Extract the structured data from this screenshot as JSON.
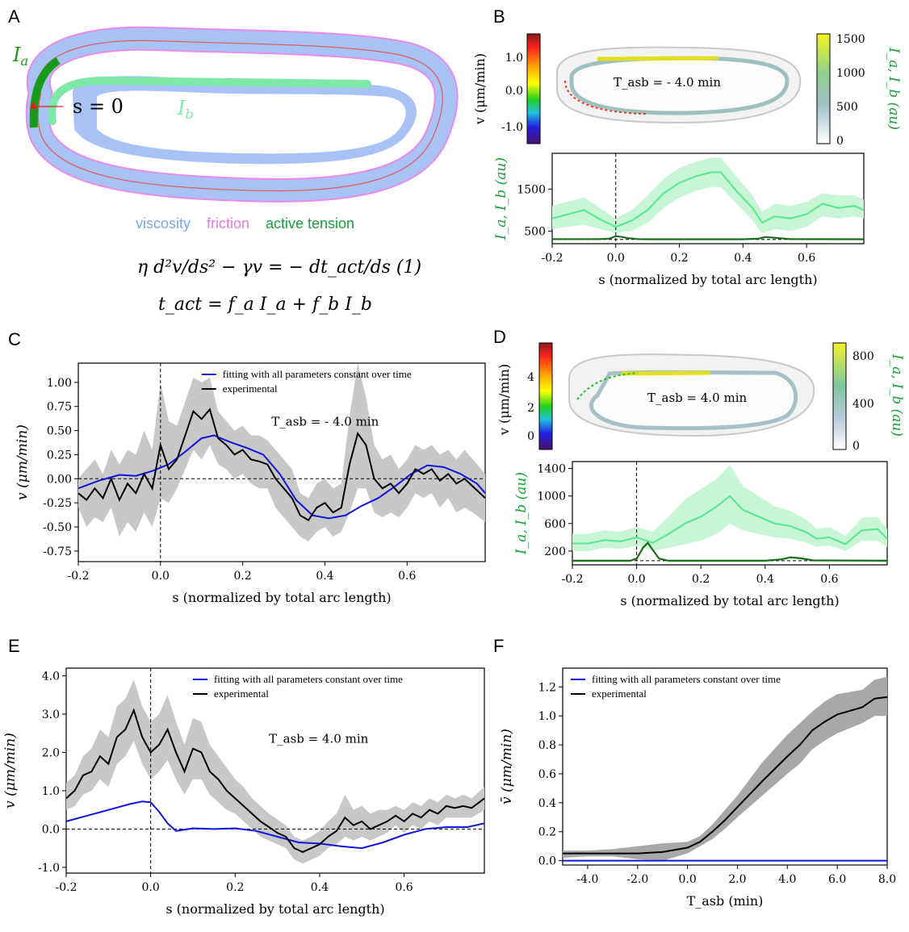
{
  "panel_labels": [
    "A",
    "B",
    "C",
    "D",
    "E",
    "F"
  ],
  "panelA": {
    "Ia_label": "I_a",
    "Ib_label": "I_b",
    "s0_label": "s = 0",
    "legend_viscosity": "viscosity",
    "legend_friction": "friction",
    "legend_tension": "active tension",
    "eq1": "η d²v/ds² − γv = − dt_act/ds   (1)",
    "eq2": "t_act = f_a I_a + f_b I_b",
    "colors": {
      "viscosity": "#a9c2f5",
      "friction": "#e88ae8",
      "tension": "#1aa03a",
      "Ia": "#1a9a1a",
      "Ib": "#7de8a8",
      "centerline": "#e05a5a"
    }
  },
  "panelB": {
    "v_label": "v (μm/min)",
    "v_ticks": [
      "1.0",
      "0.0",
      "-1.0"
    ],
    "I_label": "I_a, I_b (au)",
    "I_ticks": [
      "1500",
      "1000",
      "500",
      "0"
    ],
    "time_label": "T_asb = - 4.0 min"
  },
  "panelD": {
    "v_label": "v (μm/min)",
    "v_ticks": [
      "4",
      "2",
      "0"
    ],
    "I_label": "I_a, I_b (au)",
    "I_ticks": [
      "800",
      "400",
      "0"
    ],
    "time_label": "T_asb = 4.0 min"
  },
  "chart_data": [
    {
      "id": "B",
      "type": "line",
      "xlabel": "s (normalized by total arc length)",
      "ylabel": "I_a, I_b (au)",
      "xlim": [
        -0.2,
        0.78
      ],
      "ylim": [
        200,
        2350
      ],
      "xticks": [
        "-0.2",
        "0.0",
        "0.2",
        "0.4",
        "0.6"
      ],
      "yticks": [
        "500",
        "1500"
      ],
      "vline_x": 0,
      "hline_y": 300,
      "series": [
        {
          "name": "I_b",
          "color": "#55e88f",
          "x": [
            -0.2,
            -0.15,
            -0.1,
            -0.05,
            0,
            0.05,
            0.1,
            0.15,
            0.2,
            0.25,
            0.3,
            0.33,
            0.38,
            0.43,
            0.46,
            0.5,
            0.55,
            0.6,
            0.65,
            0.7,
            0.75,
            0.78
          ],
          "y": [
            800,
            900,
            1000,
            780,
            600,
            750,
            1000,
            1400,
            1650,
            1800,
            1900,
            1900,
            1450,
            1050,
            700,
            850,
            800,
            900,
            1150,
            1050,
            1100,
            1000
          ],
          "lo": [
            550,
            600,
            650,
            550,
            450,
            500,
            700,
            1050,
            1300,
            1450,
            1550,
            1550,
            1150,
            750,
            450,
            550,
            500,
            600,
            850,
            800,
            850,
            800
          ],
          "hi": [
            1100,
            1200,
            1300,
            1050,
            800,
            1000,
            1350,
            1750,
            2000,
            2150,
            2250,
            2250,
            1800,
            1350,
            950,
            1150,
            1100,
            1200,
            1400,
            1350,
            1350,
            1250
          ]
        },
        {
          "name": "I_a",
          "color": "#1b6b1b",
          "x": [
            -0.2,
            -0.05,
            -0.02,
            0,
            0.02,
            0.04,
            0.07,
            0.1,
            0.4,
            0.45,
            0.47,
            0.5,
            0.55,
            0.78
          ],
          "y": [
            310,
            310,
            320,
            380,
            360,
            330,
            310,
            305,
            305,
            320,
            360,
            340,
            310,
            305
          ]
        }
      ]
    },
    {
      "id": "C",
      "type": "line",
      "xlabel": "s (normalized by total arc length)",
      "ylabel": "v (μm/min)",
      "xlim": [
        -0.2,
        0.79
      ],
      "ylim": [
        -0.86,
        1.2
      ],
      "xticks": [
        "-0.2",
        "0.0",
        "0.2",
        "0.4",
        "0.6"
      ],
      "yticks": [
        "1.00",
        "0.75",
        "0.50",
        "0.25",
        "0.00",
        "-0.25",
        "-0.50",
        "-0.75"
      ],
      "annotation": "T_asb = - 4.0 min",
      "vline_x": 0,
      "hline_y": 0,
      "series": [
        {
          "name": "fitting with all parameters constant over time",
          "color": "#1414e0",
          "x": [
            -0.2,
            -0.15,
            -0.1,
            -0.06,
            -0.02,
            0.02,
            0.06,
            0.1,
            0.13,
            0.17,
            0.21,
            0.25,
            0.29,
            0.33,
            0.37,
            0.41,
            0.45,
            0.49,
            0.53,
            0.57,
            0.61,
            0.65,
            0.69,
            0.73,
            0.77,
            0.79
          ],
          "y": [
            -0.1,
            -0.02,
            0.04,
            0.03,
            0.08,
            0.15,
            0.28,
            0.42,
            0.45,
            0.38,
            0.32,
            0.25,
            0.05,
            -0.22,
            -0.38,
            -0.41,
            -0.38,
            -0.28,
            -0.2,
            -0.08,
            0.05,
            0.14,
            0.12,
            0.05,
            -0.05,
            -0.15
          ]
        },
        {
          "name": "experimental",
          "color": "#000000",
          "x": [
            -0.2,
            -0.18,
            -0.16,
            -0.14,
            -0.12,
            -0.1,
            -0.08,
            -0.06,
            -0.04,
            -0.02,
            0,
            0.02,
            0.04,
            0.06,
            0.08,
            0.1,
            0.12,
            0.14,
            0.16,
            0.18,
            0.2,
            0.22,
            0.24,
            0.26,
            0.28,
            0.3,
            0.32,
            0.34,
            0.36,
            0.38,
            0.4,
            0.42,
            0.44,
            0.46,
            0.48,
            0.5,
            0.52,
            0.54,
            0.56,
            0.58,
            0.6,
            0.62,
            0.64,
            0.66,
            0.68,
            0.7,
            0.72,
            0.74,
            0.76,
            0.79
          ],
          "y": [
            -0.15,
            -0.22,
            -0.1,
            -0.2,
            0.0,
            -0.22,
            -0.05,
            -0.15,
            0.05,
            -0.1,
            0.35,
            0.1,
            0.2,
            0.45,
            0.7,
            0.62,
            0.72,
            0.42,
            0.35,
            0.25,
            0.3,
            0.2,
            0.18,
            0.15,
            0.0,
            -0.1,
            -0.2,
            -0.38,
            -0.43,
            -0.3,
            -0.25,
            -0.35,
            -0.3,
            0.15,
            0.47,
            0.35,
            0.0,
            -0.1,
            -0.05,
            -0.15,
            -0.05,
            0.1,
            0.05,
            0.1,
            -0.02,
            0.05,
            -0.05,
            0.0,
            -0.08,
            -0.2
          ],
          "lo": [
            -0.3,
            -0.5,
            -0.4,
            -0.45,
            -0.3,
            -0.6,
            -0.45,
            -0.55,
            -0.35,
            -0.5,
            -0.2,
            -0.25,
            -0.1,
            0.1,
            0.3,
            0.2,
            0.35,
            0.15,
            0.1,
            0.0,
            0.05,
            -0.05,
            -0.1,
            -0.1,
            -0.3,
            -0.4,
            -0.5,
            -0.6,
            -0.65,
            -0.55,
            -0.5,
            -0.6,
            -0.55,
            -0.35,
            -0.1,
            -0.1,
            -0.35,
            -0.4,
            -0.35,
            -0.4,
            -0.3,
            -0.15,
            -0.2,
            -0.15,
            -0.3,
            -0.2,
            -0.35,
            -0.3,
            -0.35,
            -0.45
          ],
          "hi": [
            0.0,
            0.1,
            0.2,
            0.05,
            0.3,
            0.15,
            0.3,
            0.25,
            0.5,
            0.3,
            1.0,
            0.6,
            0.55,
            0.8,
            1.05,
            1.0,
            1.05,
            0.7,
            0.6,
            0.5,
            0.55,
            0.45,
            0.45,
            0.4,
            0.3,
            0.2,
            0.1,
            -0.15,
            -0.2,
            -0.05,
            0.0,
            -0.1,
            -0.05,
            0.65,
            1.2,
            0.85,
            0.35,
            0.2,
            0.25,
            0.1,
            0.2,
            0.35,
            0.3,
            0.35,
            0.25,
            0.3,
            0.2,
            0.3,
            0.2,
            0.05
          ]
        }
      ]
    },
    {
      "id": "D",
      "type": "line",
      "xlabel": "s (normalized by total arc length)",
      "ylabel": "I_a, I_b (au)",
      "xlim": [
        -0.2,
        0.78
      ],
      "ylim": [
        0,
        1500
      ],
      "xticks": [
        "-0.2",
        "0.0",
        "0.2",
        "0.4",
        "0.6"
      ],
      "yticks": [
        "1400",
        "1000",
        "600",
        "200"
      ],
      "vline_x": 0,
      "hline_y": 60,
      "series": [
        {
          "name": "I_b",
          "color": "#55e88f",
          "x": [
            -0.2,
            -0.15,
            -0.1,
            -0.05,
            0,
            0.05,
            0.1,
            0.15,
            0.2,
            0.25,
            0.29,
            0.33,
            0.38,
            0.43,
            0.48,
            0.53,
            0.56,
            0.6,
            0.65,
            0.7,
            0.75,
            0.78
          ],
          "y": [
            310,
            310,
            360,
            340,
            400,
            320,
            450,
            600,
            700,
            850,
            1000,
            800,
            700,
            600,
            560,
            470,
            380,
            400,
            300,
            500,
            520,
            380
          ],
          "lo": [
            200,
            200,
            250,
            230,
            280,
            200,
            250,
            300,
            350,
            450,
            600,
            500,
            450,
            400,
            380,
            320,
            260,
            280,
            200,
            350,
            350,
            260
          ],
          "hi": [
            450,
            450,
            500,
            480,
            550,
            480,
            700,
            950,
            1100,
            1250,
            1450,
            1150,
            1000,
            850,
            780,
            650,
            520,
            550,
            420,
            680,
            700,
            520
          ]
        },
        {
          "name": "I_a",
          "color": "#1b6b1b",
          "x": [
            -0.2,
            -0.02,
            0.0,
            0.02,
            0.035,
            0.05,
            0.07,
            0.1,
            0.4,
            0.45,
            0.48,
            0.51,
            0.55,
            0.78
          ],
          "y": [
            60,
            60,
            90,
            250,
            320,
            220,
            90,
            60,
            60,
            80,
            110,
            95,
            65,
            60
          ]
        }
      ]
    },
    {
      "id": "E",
      "type": "line",
      "xlabel": "s (normalized by total arc length)",
      "ylabel": "v (μm/min)",
      "xlim": [
        -0.2,
        0.79
      ],
      "ylim": [
        -1.15,
        4.2
      ],
      "xticks": [
        "-0.2",
        "0.0",
        "0.2",
        "0.4",
        "0.6"
      ],
      "yticks": [
        "4.0",
        "3.0",
        "2.0",
        "1.0",
        "0.0",
        "-1.0"
      ],
      "annotation": "T_asb = 4.0 min",
      "vline_x": 0,
      "hline_y": 0,
      "series": [
        {
          "name": "fitting with all parameters constant over time",
          "color": "#1414e0",
          "x": [
            -0.2,
            -0.15,
            -0.1,
            -0.05,
            -0.02,
            0.0,
            0.02,
            0.04,
            0.06,
            0.1,
            0.15,
            0.2,
            0.25,
            0.3,
            0.35,
            0.4,
            0.45,
            0.5,
            0.55,
            0.6,
            0.65,
            0.7,
            0.75,
            0.79
          ],
          "y": [
            0.2,
            0.35,
            0.5,
            0.65,
            0.72,
            0.7,
            0.45,
            0.15,
            -0.05,
            0.02,
            0.0,
            0.02,
            -0.05,
            -0.2,
            -0.35,
            -0.38,
            -0.45,
            -0.5,
            -0.35,
            -0.15,
            0.0,
            0.05,
            0.05,
            0.15
          ]
        },
        {
          "name": "experimental",
          "color": "#000000",
          "x": [
            -0.2,
            -0.18,
            -0.16,
            -0.14,
            -0.12,
            -0.1,
            -0.08,
            -0.06,
            -0.04,
            -0.02,
            0.0,
            0.02,
            0.04,
            0.06,
            0.08,
            0.1,
            0.12,
            0.14,
            0.16,
            0.18,
            0.2,
            0.22,
            0.24,
            0.26,
            0.28,
            0.3,
            0.32,
            0.34,
            0.36,
            0.38,
            0.4,
            0.42,
            0.44,
            0.46,
            0.48,
            0.5,
            0.52,
            0.54,
            0.56,
            0.58,
            0.6,
            0.62,
            0.64,
            0.66,
            0.68,
            0.7,
            0.72,
            0.74,
            0.76,
            0.79
          ],
          "y": [
            0.8,
            1.0,
            1.4,
            1.5,
            1.9,
            1.7,
            2.4,
            2.6,
            3.1,
            2.4,
            2.0,
            2.2,
            2.6,
            2.0,
            1.5,
            2.1,
            2.0,
            1.5,
            1.3,
            1.0,
            0.8,
            0.6,
            0.4,
            0.2,
            0.05,
            -0.1,
            -0.2,
            -0.5,
            -0.6,
            -0.5,
            -0.4,
            -0.2,
            -0.05,
            0.3,
            0.1,
            0.2,
            0.0,
            0.1,
            0.2,
            0.35,
            0.2,
            0.4,
            0.3,
            0.5,
            0.4,
            0.6,
            0.55,
            0.6,
            0.55,
            0.8
          ],
          "lo": [
            0.5,
            0.6,
            0.9,
            1.0,
            1.3,
            1.1,
            1.7,
            1.9,
            2.3,
            1.7,
            1.3,
            1.5,
            1.8,
            1.3,
            0.9,
            1.3,
            1.3,
            0.9,
            0.7,
            0.5,
            0.4,
            0.2,
            0.0,
            -0.2,
            -0.3,
            -0.4,
            -0.5,
            -0.8,
            -0.9,
            -0.8,
            -0.7,
            -0.5,
            -0.4,
            -0.2,
            -0.3,
            -0.2,
            -0.3,
            -0.2,
            -0.1,
            0.1,
            -0.1,
            0.1,
            0.0,
            0.2,
            0.1,
            0.3,
            0.3,
            0.3,
            0.3,
            0.5
          ],
          "hi": [
            1.2,
            1.4,
            1.9,
            2.1,
            2.6,
            2.4,
            3.2,
            3.4,
            3.9,
            3.2,
            2.8,
            3.0,
            3.5,
            2.8,
            2.2,
            2.9,
            2.8,
            2.2,
            1.9,
            1.6,
            1.3,
            1.1,
            0.8,
            0.6,
            0.4,
            0.25,
            0.1,
            -0.2,
            -0.3,
            -0.2,
            -0.05,
            0.2,
            0.4,
            0.9,
            0.5,
            0.6,
            0.4,
            0.5,
            0.5,
            0.6,
            0.5,
            0.7,
            0.6,
            0.8,
            0.7,
            0.9,
            0.8,
            0.9,
            0.8,
            1.1
          ]
        }
      ]
    },
    {
      "id": "F",
      "type": "line",
      "xlabel": "T_asb (min)",
      "ylabel": "v̄ (μm/min)",
      "xlim": [
        -5.0,
        8.0
      ],
      "ylim": [
        -0.03,
        1.33
      ],
      "xticks": [
        "-4.0",
        "-2.0",
        "0.0",
        "2.0",
        "4.0",
        "6.0",
        "8.0"
      ],
      "yticks": [
        "0.0",
        "0.2",
        "0.4",
        "0.6",
        "0.8",
        "1.0",
        "1.2"
      ],
      "series": [
        {
          "name": "fitting with all parameters constant over time",
          "color": "#1414e0",
          "x": [
            -5.0,
            8.0
          ],
          "y": [
            0.0,
            0.0
          ]
        },
        {
          "name": "experimental",
          "color": "#000000",
          "x": [
            -5.0,
            -4.0,
            -3.0,
            -2.0,
            -1.0,
            0.0,
            0.5,
            1.0,
            1.5,
            2.0,
            3.0,
            4.0,
            4.5,
            5.0,
            5.5,
            6.0,
            7.0,
            7.5,
            8.0
          ],
          "y": [
            0.05,
            0.05,
            0.05,
            0.05,
            0.06,
            0.09,
            0.13,
            0.2,
            0.28,
            0.37,
            0.55,
            0.72,
            0.8,
            0.9,
            0.96,
            1.01,
            1.06,
            1.12,
            1.13
          ],
          "lo": [
            0.02,
            0.03,
            0.03,
            0.01,
            0.0,
            0.05,
            0.1,
            0.15,
            0.22,
            0.3,
            0.45,
            0.6,
            0.67,
            0.77,
            0.83,
            0.88,
            0.95,
            1.0,
            1.0
          ],
          "hi": [
            0.07,
            0.07,
            0.08,
            0.1,
            0.12,
            0.13,
            0.17,
            0.25,
            0.35,
            0.45,
            0.68,
            0.87,
            0.95,
            1.03,
            1.1,
            1.15,
            1.18,
            1.25,
            1.27
          ]
        }
      ]
    }
  ]
}
